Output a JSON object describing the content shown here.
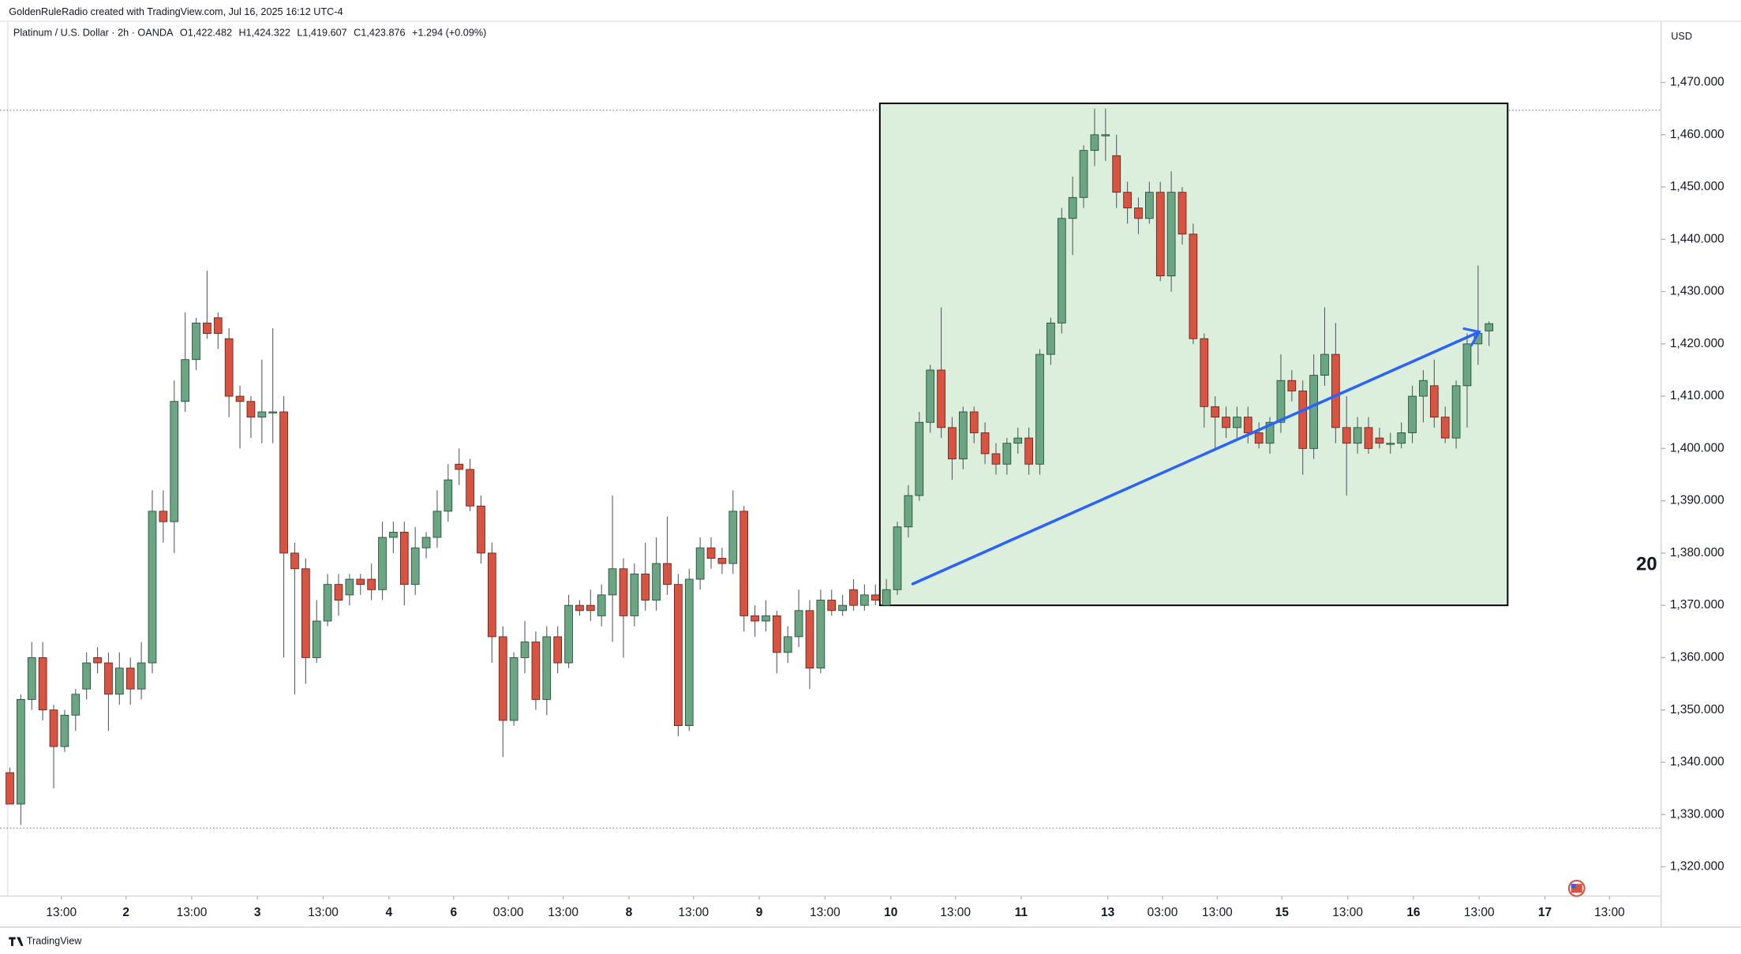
{
  "chart_data": {
    "type": "candlestick",
    "creator": "GoldenRuleRadio created with TradingView.com, Jul 16, 2025 16:12 UTC-4",
    "title": "Platinum / U.S. Dollar · 2h · OANDA",
    "ohlc_legend": [
      "O1,422.482",
      "H1,424.322",
      "L1,419.607",
      "C1,423.876",
      "+1.294 (+0.09%)"
    ],
    "currency": "USD",
    "footer": "TradingView",
    "marker_text": "20",
    "up_color": "#6ba583",
    "down_color": "#d75442",
    "ohlc": [
      [
        1338,
        1339,
        1332,
        1332
      ],
      [
        1332,
        1353,
        1328,
        1352
      ],
      [
        1352,
        1363,
        1350,
        1360
      ],
      [
        1360,
        1363,
        1348,
        1350
      ],
      [
        1350,
        1351,
        1335,
        1343
      ],
      [
        1343,
        1350,
        1342,
        1349
      ],
      [
        1349,
        1354,
        1346,
        1353
      ],
      [
        1354,
        1361,
        1352,
        1359
      ],
      [
        1360,
        1362,
        1357,
        1359
      ],
      [
        1359,
        1361,
        1346,
        1353
      ],
      [
        1353,
        1361,
        1351,
        1358
      ],
      [
        1358,
        1360,
        1351,
        1354
      ],
      [
        1354,
        1363,
        1352,
        1359
      ],
      [
        1359,
        1392,
        1357,
        1388
      ],
      [
        1388,
        1392,
        1382,
        1386
      ],
      [
        1386,
        1413,
        1380,
        1409
      ],
      [
        1409,
        1426,
        1407,
        1417
      ],
      [
        1417,
        1425,
        1415,
        1424
      ],
      [
        1424,
        1434,
        1421,
        1422
      ],
      [
        1425,
        1426,
        1419,
        1422
      ],
      [
        1421,
        1423,
        1406,
        1410
      ],
      [
        1410,
        1412,
        1400,
        1409
      ],
      [
        1409,
        1410,
        1402,
        1406
      ],
      [
        1406,
        1417,
        1401,
        1407
      ],
      [
        1407,
        1423,
        1401,
        1407
      ],
      [
        1407,
        1410,
        1360,
        1380
      ],
      [
        1380,
        1382,
        1353,
        1377
      ],
      [
        1377,
        1379,
        1355,
        1360
      ],
      [
        1360,
        1371,
        1359,
        1367
      ],
      [
        1367,
        1376,
        1366,
        1374
      ],
      [
        1374,
        1376,
        1368,
        1371
      ],
      [
        1372,
        1376,
        1370,
        1375
      ],
      [
        1375,
        1376,
        1372,
        1374
      ],
      [
        1375,
        1378,
        1371,
        1373
      ],
      [
        1373,
        1386,
        1371,
        1383
      ],
      [
        1383,
        1386,
        1380,
        1384
      ],
      [
        1384,
        1386,
        1370,
        1374
      ],
      [
        1374,
        1385,
        1372,
        1381
      ],
      [
        1381,
        1384,
        1379,
        1383
      ],
      [
        1383,
        1392,
        1381,
        1388
      ],
      [
        1388,
        1397,
        1386,
        1394
      ],
      [
        1397,
        1400,
        1393,
        1396
      ],
      [
        1396,
        1398,
        1388,
        1389
      ],
      [
        1389,
        1391,
        1378,
        1380
      ],
      [
        1380,
        1382,
        1359,
        1364
      ],
      [
        1364,
        1366,
        1341,
        1348
      ],
      [
        1348,
        1361,
        1347,
        1360
      ],
      [
        1360,
        1367,
        1357,
        1363
      ],
      [
        1363,
        1365,
        1350,
        1352
      ],
      [
        1352,
        1366,
        1349,
        1364
      ],
      [
        1364,
        1366,
        1357,
        1359
      ],
      [
        1359,
        1372,
        1358,
        1370
      ],
      [
        1370,
        1371,
        1368,
        1369
      ],
      [
        1370,
        1373,
        1367,
        1369
      ],
      [
        1368,
        1374,
        1366,
        1372
      ],
      [
        1372,
        1391,
        1363,
        1377
      ],
      [
        1377,
        1379,
        1360,
        1368
      ],
      [
        1368,
        1378,
        1366,
        1376
      ],
      [
        1376,
        1382,
        1369,
        1371
      ],
      [
        1371,
        1383,
        1369,
        1378
      ],
      [
        1378,
        1387,
        1372,
        1374
      ],
      [
        1374,
        1376,
        1345,
        1347
      ],
      [
        1347,
        1377,
        1346,
        1375
      ],
      [
        1375,
        1383,
        1373,
        1381
      ],
      [
        1381,
        1383,
        1377,
        1379
      ],
      [
        1379,
        1381,
        1376,
        1378
      ],
      [
        1378,
        1392,
        1376,
        1388
      ],
      [
        1388,
        1389,
        1365,
        1368
      ],
      [
        1368,
        1370,
        1364,
        1367
      ],
      [
        1367,
        1371,
        1365,
        1368
      ],
      [
        1368,
        1369,
        1357,
        1361
      ],
      [
        1361,
        1366,
        1359,
        1364
      ],
      [
        1364,
        1373,
        1362,
        1369
      ],
      [
        1369,
        1371,
        1354,
        1358
      ],
      [
        1358,
        1373,
        1357,
        1371
      ],
      [
        1371,
        1373,
        1368,
        1369
      ],
      [
        1369,
        1372,
        1368,
        1370
      ],
      [
        1373,
        1375,
        1369,
        1370
      ],
      [
        1370,
        1374,
        1369,
        1372
      ],
      [
        1372,
        1374,
        1370,
        1371
      ],
      [
        1370,
        1375,
        1370,
        1373
      ],
      [
        1373,
        1386,
        1372,
        1385
      ],
      [
        1385,
        1393,
        1383,
        1391
      ],
      [
        1391,
        1407,
        1390,
        1405
      ],
      [
        1405,
        1416,
        1403,
        1415
      ],
      [
        1415,
        1427,
        1402,
        1404
      ],
      [
        1404,
        1406,
        1394,
        1398
      ],
      [
        1398,
        1408,
        1396,
        1407
      ],
      [
        1407,
        1408,
        1401,
        1403
      ],
      [
        1403,
        1405,
        1397,
        1399
      ],
      [
        1399,
        1401,
        1395,
        1397
      ],
      [
        1397,
        1402,
        1395,
        1401
      ],
      [
        1401,
        1404,
        1399,
        1402
      ],
      [
        1402,
        1404,
        1395,
        1397
      ],
      [
        1397,
        1419,
        1395,
        1418
      ],
      [
        1418,
        1425,
        1416,
        1424
      ],
      [
        1424,
        1446,
        1422,
        1444
      ],
      [
        1444,
        1452,
        1437,
        1448
      ],
      [
        1448,
        1458,
        1446,
        1457
      ],
      [
        1457,
        1465,
        1454,
        1460
      ],
      [
        1460,
        1465,
        1455,
        1460
      ],
      [
        1456,
        1460,
        1446,
        1449
      ],
      [
        1449,
        1451,
        1443,
        1446
      ],
      [
        1446,
        1448,
        1441,
        1444
      ],
      [
        1444,
        1451,
        1443,
        1449
      ],
      [
        1449,
        1451,
        1432,
        1433
      ],
      [
        1433,
        1453,
        1430,
        1449
      ],
      [
        1449,
        1450,
        1439,
        1441
      ],
      [
        1441,
        1443,
        1420,
        1421
      ],
      [
        1421,
        1422,
        1404,
        1408
      ],
      [
        1408,
        1410,
        1400,
        1406
      ],
      [
        1406,
        1408,
        1402,
        1404
      ],
      [
        1404,
        1408,
        1402,
        1406
      ],
      [
        1406,
        1408,
        1401,
        1403
      ],
      [
        1403,
        1405,
        1400,
        1401
      ],
      [
        1401,
        1406,
        1399,
        1405
      ],
      [
        1405,
        1418,
        1403,
        1413
      ],
      [
        1413,
        1415,
        1409,
        1411
      ],
      [
        1411,
        1413,
        1395,
        1400
      ],
      [
        1400,
        1418,
        1398,
        1414
      ],
      [
        1414,
        1427,
        1412,
        1418
      ],
      [
        1418,
        1424,
        1401,
        1404
      ],
      [
        1404,
        1410,
        1391,
        1401
      ],
      [
        1401,
        1406,
        1399,
        1404
      ],
      [
        1404,
        1406,
        1399,
        1400
      ],
      [
        1402,
        1404,
        1400,
        1401
      ],
      [
        1401,
        1403,
        1399,
        1401
      ],
      [
        1401,
        1405,
        1400,
        1403
      ],
      [
        1403,
        1412,
        1401,
        1410
      ],
      [
        1410,
        1415,
        1405,
        1413
      ],
      [
        1412,
        1417,
        1404,
        1406
      ],
      [
        1406,
        1408,
        1401,
        1402
      ],
      [
        1402,
        1413,
        1400,
        1412
      ],
      [
        1412,
        1422,
        1404,
        1420
      ],
      [
        1420,
        1435,
        1416,
        1422
      ],
      [
        1422.482,
        1424.322,
        1419.607,
        1423.876
      ]
    ],
    "xlim": [
      -0.9,
      150.7
    ],
    "xticks": [
      {
        "value": 4.7,
        "label": "13:00"
      },
      {
        "value": 10.6,
        "label": "2"
      },
      {
        "value": 16.6,
        "label": "13:00"
      },
      {
        "value": 22.6,
        "label": "3"
      },
      {
        "value": 28.6,
        "label": "13:00"
      },
      {
        "value": 34.6,
        "label": "4"
      },
      {
        "value": 40.5,
        "label": "6"
      },
      {
        "value": 45.5,
        "label": "03:00"
      },
      {
        "value": 50.5,
        "label": "13:00"
      },
      {
        "value": 56.5,
        "label": "8"
      },
      {
        "value": 62.4,
        "label": "13:00"
      },
      {
        "value": 68.4,
        "label": "9"
      },
      {
        "value": 74.4,
        "label": "13:00"
      },
      {
        "value": 80.4,
        "label": "10"
      },
      {
        "value": 86.3,
        "label": "13:00"
      },
      {
        "value": 92.3,
        "label": "11"
      },
      {
        "value": 100.2,
        "label": "13"
      },
      {
        "value": 105.2,
        "label": "03:00"
      },
      {
        "value": 110.2,
        "label": "13:00"
      },
      {
        "value": 116.1,
        "label": "15"
      },
      {
        "value": 122.1,
        "label": "13:00"
      },
      {
        "value": 128.1,
        "label": "16"
      },
      {
        "value": 134.1,
        "label": "13:00"
      },
      {
        "value": 140.1,
        "label": "17"
      },
      {
        "value": 146.0,
        "label": "13:00"
      }
    ],
    "ylim": [
      1314.4,
      1481.7
    ],
    "yticks": [
      {
        "value": 1320,
        "label": "1,320.000"
      },
      {
        "value": 1330,
        "label": "1,330.000"
      },
      {
        "value": 1340,
        "label": "1,340.000"
      },
      {
        "value": 1350,
        "label": "1,350.000"
      },
      {
        "value": 1360,
        "label": "1,360.000"
      },
      {
        "value": 1370,
        "label": "1,370.000"
      },
      {
        "value": 1380,
        "label": "1,380.000"
      },
      {
        "value": 1390,
        "label": "1,390.000"
      },
      {
        "value": 1400,
        "label": "1,400.000"
      },
      {
        "value": 1410,
        "label": "1,410.000"
      },
      {
        "value": 1420,
        "label": "1,420.000"
      },
      {
        "value": 1430,
        "label": "1,430.000"
      },
      {
        "value": 1440,
        "label": "1,440.000"
      },
      {
        "value": 1450,
        "label": "1,450.000"
      },
      {
        "value": 1460,
        "label": "1,460.000"
      },
      {
        "value": 1470,
        "label": "1,470.000"
      }
    ],
    "box": {
      "x": [
        79.4,
        136.7
      ],
      "y": [
        1370,
        1466
      ],
      "color": "#dcefdc"
    },
    "trendline": {
      "x": [
        82.4,
        134.1
      ],
      "y": [
        1374.1,
        1422.3
      ],
      "color": "#2962ff"
    },
    "hlines": [
      1464.7,
      1327.4
    ]
  }
}
